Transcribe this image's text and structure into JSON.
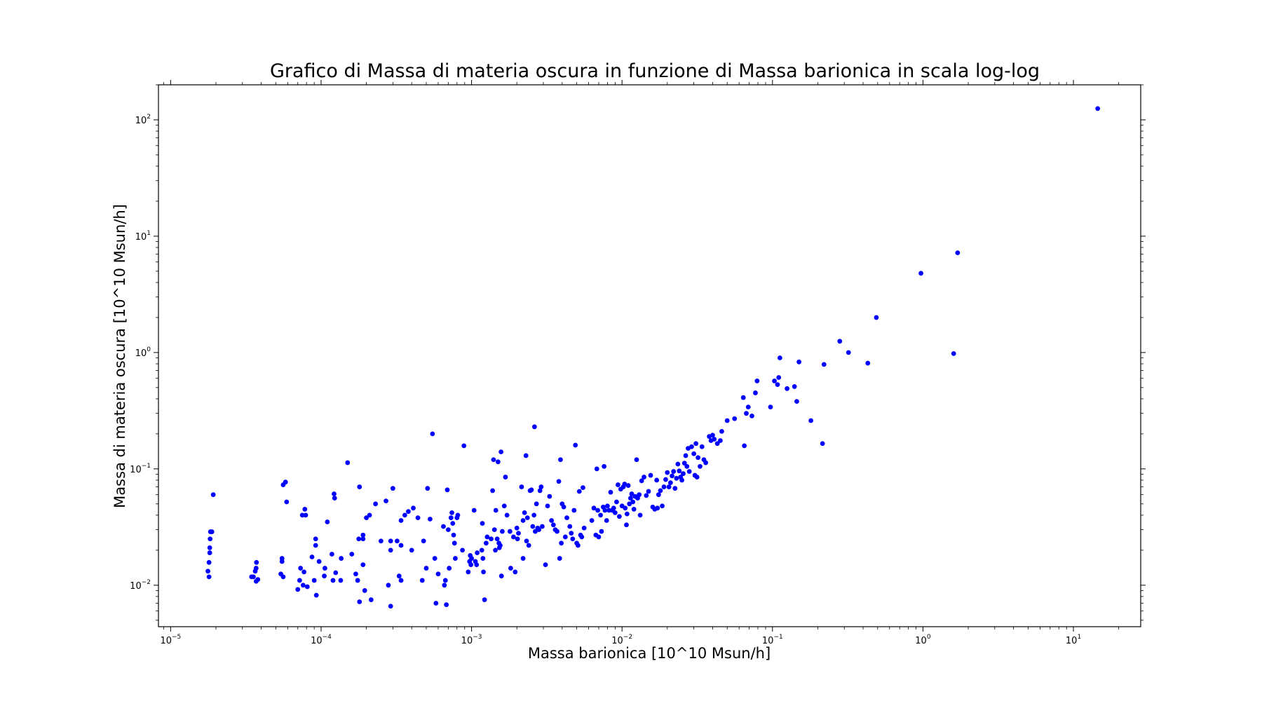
{
  "chart_data": {
    "type": "scatter",
    "title": "Grafico di Massa di materia oscura in funzione di Massa barionica in scala log-log",
    "xlabel": "Massa barionica [10^10 Msun/h]",
    "ylabel": "Massa di materia oscura [10^10 Msun/h]",
    "xscale": "log",
    "yscale": "log",
    "xlim": [
      8.3e-06,
      28
    ],
    "ylim": [
      0.0044,
      200
    ],
    "grid": false,
    "marker_color": "#0000ff",
    "x_ticks": [
      {
        "value": 1e-05,
        "base": "10",
        "exp": "−5"
      },
      {
        "value": 0.0001,
        "base": "10",
        "exp": "−4"
      },
      {
        "value": 0.001,
        "base": "10",
        "exp": "−3"
      },
      {
        "value": 0.01,
        "base": "10",
        "exp": "−2"
      },
      {
        "value": 0.1,
        "base": "10",
        "exp": "−1"
      },
      {
        "value": 1,
        "base": "10",
        "exp": "0"
      },
      {
        "value": 10,
        "base": "10",
        "exp": "1"
      }
    ],
    "y_ticks": [
      {
        "value": 0.01,
        "base": "10",
        "exp": "−2"
      },
      {
        "value": 0.1,
        "base": "10",
        "exp": "−1"
      },
      {
        "value": 1,
        "base": "10",
        "exp": "0"
      },
      {
        "value": 10,
        "base": "10",
        "exp": "1"
      },
      {
        "value": 100,
        "base": "10",
        "exp": "2"
      }
    ],
    "points": [
      [
        1.77e-05,
        0.0132
      ],
      [
        1.8e-05,
        0.0118
      ],
      [
        1.8e-05,
        0.0157
      ],
      [
        1.82e-05,
        0.019
      ],
      [
        1.82e-05,
        0.021
      ],
      [
        1.83e-05,
        0.025
      ],
      [
        1.84e-05,
        0.0288
      ],
      [
        1.88e-05,
        0.0288
      ],
      [
        1.92e-05,
        0.06
      ],
      [
        3.45e-05,
        0.0118
      ],
      [
        3.55e-05,
        0.0118
      ],
      [
        3.65e-05,
        0.0132
      ],
      [
        3.7e-05,
        0.014
      ],
      [
        3.72e-05,
        0.0157
      ],
      [
        3.7e-05,
        0.0108
      ],
      [
        3.8e-05,
        0.0112
      ],
      [
        5.4e-05,
        0.0125
      ],
      [
        5.5e-05,
        0.016
      ],
      [
        5.5e-05,
        0.017
      ],
      [
        5.6e-05,
        0.0118
      ],
      [
        5.6e-05,
        0.073
      ],
      [
        5.8e-05,
        0.077
      ],
      [
        5.9e-05,
        0.052
      ],
      [
        7e-05,
        0.0092
      ],
      [
        7.2e-05,
        0.011
      ],
      [
        7.3e-05,
        0.014
      ],
      [
        7.5e-05,
        0.04
      ],
      [
        7.6e-05,
        0.01
      ],
      [
        7.7e-05,
        0.013
      ],
      [
        7.8e-05,
        0.045
      ],
      [
        7.9e-05,
        0.04
      ],
      [
        8.1e-05,
        0.0097
      ],
      [
        8.7e-05,
        0.0175
      ],
      [
        9e-05,
        0.011
      ],
      [
        9.2e-05,
        0.025
      ],
      [
        9.2e-05,
        0.022
      ],
      [
        9.3e-05,
        0.0082
      ],
      [
        9.7e-05,
        0.016
      ],
      [
        0.000105,
        0.012
      ],
      [
        0.000106,
        0.014
      ],
      [
        0.00011,
        0.035
      ],
      [
        0.000118,
        0.0185
      ],
      [
        0.00012,
        0.011
      ],
      [
        0.000122,
        0.061
      ],
      [
        0.000123,
        0.056
      ],
      [
        0.000125,
        0.0128
      ],
      [
        0.000135,
        0.011
      ],
      [
        0.000136,
        0.017
      ],
      [
        0.00015,
        0.113
      ],
      [
        0.00016,
        0.0185
      ],
      [
        0.00017,
        0.0125
      ],
      [
        0.000175,
        0.011
      ],
      [
        0.000178,
        0.025
      ],
      [
        0.00018,
        0.07
      ],
      [
        0.00018,
        0.0072
      ],
      [
        0.00019,
        0.015
      ],
      [
        0.00019,
        0.027
      ],
      [
        0.00019,
        0.025
      ],
      [
        0.000195,
        0.009
      ],
      [
        0.0002,
        0.038
      ],
      [
        0.00021,
        0.04
      ],
      [
        0.000215,
        0.0075
      ],
      [
        0.00023,
        0.05
      ],
      [
        0.00025,
        0.024
      ],
      [
        0.00027,
        0.053
      ],
      [
        0.00028,
        0.01
      ],
      [
        0.00029,
        0.024
      ],
      [
        0.00029,
        0.02
      ],
      [
        0.00029,
        0.0066
      ],
      [
        0.0003,
        0.068
      ],
      [
        0.00032,
        0.024
      ],
      [
        0.00033,
        0.012
      ],
      [
        0.00034,
        0.036
      ],
      [
        0.00034,
        0.022
      ],
      [
        0.00034,
        0.011
      ],
      [
        0.00036,
        0.04
      ],
      [
        0.00038,
        0.043
      ],
      [
        0.0004,
        0.02
      ],
      [
        0.00041,
        0.046
      ],
      [
        0.00044,
        0.038
      ],
      [
        0.00047,
        0.011
      ],
      [
        0.00048,
        0.024
      ],
      [
        0.0005,
        0.014
      ],
      [
        0.00051,
        0.068
      ],
      [
        0.00053,
        0.037
      ],
      [
        0.00055,
        0.2
      ],
      [
        0.00057,
        0.017
      ],
      [
        0.00058,
        0.007
      ],
      [
        0.0006,
        0.0125
      ],
      [
        0.00065,
        0.032
      ],
      [
        0.00066,
        0.01
      ],
      [
        0.00067,
        0.011
      ],
      [
        0.00068,
        0.0068
      ],
      [
        0.00069,
        0.066
      ],
      [
        0.0007,
        0.03
      ],
      [
        0.00071,
        0.014
      ],
      [
        0.00073,
        0.038
      ],
      [
        0.00074,
        0.042
      ],
      [
        0.00075,
        0.034
      ],
      [
        0.00076,
        0.027
      ],
      [
        0.00077,
        0.023
      ],
      [
        0.00078,
        0.017
      ],
      [
        0.0008,
        0.038
      ],
      [
        0.00081,
        0.04
      ],
      [
        0.00087,
        0.02
      ],
      [
        0.00089,
        0.158
      ],
      [
        0.00095,
        0.013
      ],
      [
        0.00097,
        0.016
      ],
      [
        0.00098,
        0.018
      ],
      [
        0.00099,
        0.015
      ],
      [
        0.001,
        0.017
      ],
      [
        0.00104,
        0.044
      ],
      [
        0.00106,
        0.016
      ],
      [
        0.00108,
        0.015
      ],
      [
        0.00109,
        0.019
      ],
      [
        0.00117,
        0.02
      ],
      [
        0.00118,
        0.034
      ],
      [
        0.00119,
        0.017
      ],
      [
        0.0012,
        0.013
      ],
      [
        0.00122,
        0.0075
      ],
      [
        0.00125,
        0.023
      ],
      [
        0.00127,
        0.026
      ],
      [
        0.00135,
        0.025
      ],
      [
        0.00138,
        0.065
      ],
      [
        0.0014,
        0.12
      ],
      [
        0.00142,
        0.03
      ],
      [
        0.00144,
        0.02
      ],
      [
        0.00145,
        0.044
      ],
      [
        0.00148,
        0.025
      ],
      [
        0.0015,
        0.115
      ],
      [
        0.00152,
        0.023
      ],
      [
        0.00153,
        0.021
      ],
      [
        0.00155,
        0.022
      ],
      [
        0.00157,
        0.14
      ],
      [
        0.00158,
        0.012
      ],
      [
        0.0016,
        0.029
      ],
      [
        0.00165,
        0.048
      ],
      [
        0.00168,
        0.085
      ],
      [
        0.00172,
        0.04
      ],
      [
        0.0018,
        0.029
      ],
      [
        0.00182,
        0.014
      ],
      [
        0.0019,
        0.026
      ],
      [
        0.00195,
        0.013
      ],
      [
        0.002,
        0.031
      ],
      [
        0.00202,
        0.025
      ],
      [
        0.00205,
        0.028
      ],
      [
        0.00215,
        0.07
      ],
      [
        0.0022,
        0.017
      ],
      [
        0.0022,
        0.036
      ],
      [
        0.00225,
        0.042
      ],
      [
        0.0023,
        0.13
      ],
      [
        0.00232,
        0.024
      ],
      [
        0.00235,
        0.038
      ],
      [
        0.0024,
        0.022
      ],
      [
        0.00245,
        0.065
      ],
      [
        0.0025,
        0.066
      ],
      [
        0.00255,
        0.032
      ],
      [
        0.0026,
        0.04
      ],
      [
        0.00262,
        0.23
      ],
      [
        0.00265,
        0.029
      ],
      [
        0.0027,
        0.05
      ],
      [
        0.00275,
        0.031
      ],
      [
        0.0028,
        0.03
      ],
      [
        0.00285,
        0.065
      ],
      [
        0.0029,
        0.07
      ],
      [
        0.00295,
        0.032
      ],
      [
        0.0031,
        0.015
      ],
      [
        0.0032,
        0.048
      ],
      [
        0.0033,
        0.058
      ],
      [
        0.0034,
        0.036
      ],
      [
        0.0035,
        0.033
      ],
      [
        0.0036,
        0.03
      ],
      [
        0.0037,
        0.029
      ],
      [
        0.0038,
        0.078
      ],
      [
        0.00385,
        0.017
      ],
      [
        0.0039,
        0.12
      ],
      [
        0.00395,
        0.023
      ],
      [
        0.004,
        0.05
      ],
      [
        0.0041,
        0.047
      ],
      [
        0.0042,
        0.026
      ],
      [
        0.0043,
        0.038
      ],
      [
        0.0045,
        0.032
      ],
      [
        0.0046,
        0.028
      ],
      [
        0.0047,
        0.025
      ],
      [
        0.0048,
        0.044
      ],
      [
        0.0049,
        0.16
      ],
      [
        0.005,
        0.023
      ],
      [
        0.0051,
        0.022
      ],
      [
        0.0052,
        0.064
      ],
      [
        0.0053,
        0.027
      ],
      [
        0.0054,
        0.026
      ],
      [
        0.0055,
        0.069
      ],
      [
        0.0056,
        0.031
      ],
      [
        0.0063,
        0.036
      ],
      [
        0.0065,
        0.046
      ],
      [
        0.0067,
        0.027
      ],
      [
        0.0068,
        0.1
      ],
      [
        0.0069,
        0.044
      ],
      [
        0.007,
        0.026
      ],
      [
        0.0072,
        0.04
      ],
      [
        0.0073,
        0.029
      ],
      [
        0.0075,
        0.047
      ],
      [
        0.0076,
        0.105
      ],
      [
        0.0077,
        0.044
      ],
      [
        0.0079,
        0.036
      ],
      [
        0.008,
        0.048
      ],
      [
        0.0082,
        0.044
      ],
      [
        0.0084,
        0.063
      ],
      [
        0.0086,
        0.044
      ],
      [
        0.0088,
        0.046
      ],
      [
        0.009,
        0.042
      ],
      [
        0.0092,
        0.052
      ],
      [
        0.0094,
        0.073
      ],
      [
        0.0096,
        0.039
      ],
      [
        0.0098,
        0.067
      ],
      [
        0.01,
        0.048
      ],
      [
        0.0102,
        0.07
      ],
      [
        0.0104,
        0.074
      ],
      [
        0.0105,
        0.046
      ],
      [
        0.0107,
        0.033
      ],
      [
        0.0108,
        0.041
      ],
      [
        0.011,
        0.072
      ],
      [
        0.0112,
        0.05
      ],
      [
        0.0114,
        0.056
      ],
      [
        0.0116,
        0.061
      ],
      [
        0.0118,
        0.052
      ],
      [
        0.012,
        0.045
      ],
      [
        0.0122,
        0.058
      ],
      [
        0.0125,
        0.12
      ],
      [
        0.0127,
        0.056
      ],
      [
        0.013,
        0.06
      ],
      [
        0.0132,
        0.04
      ],
      [
        0.0135,
        0.079
      ],
      [
        0.014,
        0.085
      ],
      [
        0.0145,
        0.059
      ],
      [
        0.015,
        0.064
      ],
      [
        0.0155,
        0.088
      ],
      [
        0.016,
        0.047
      ],
      [
        0.0165,
        0.045
      ],
      [
        0.017,
        0.08
      ],
      [
        0.0172,
        0.046
      ],
      [
        0.0175,
        0.06
      ],
      [
        0.018,
        0.065
      ],
      [
        0.0185,
        0.048
      ],
      [
        0.019,
        0.07
      ],
      [
        0.0195,
        0.081
      ],
      [
        0.02,
        0.093
      ],
      [
        0.0205,
        0.07
      ],
      [
        0.021,
        0.076
      ],
      [
        0.0215,
        0.087
      ],
      [
        0.022,
        0.095
      ],
      [
        0.0225,
        0.068
      ],
      [
        0.023,
        0.083
      ],
      [
        0.0235,
        0.11
      ],
      [
        0.024,
        0.096
      ],
      [
        0.0245,
        0.085
      ],
      [
        0.025,
        0.08
      ],
      [
        0.0255,
        0.091
      ],
      [
        0.026,
        0.112
      ],
      [
        0.0265,
        0.13
      ],
      [
        0.027,
        0.105
      ],
      [
        0.0275,
        0.15
      ],
      [
        0.028,
        0.095
      ],
      [
        0.029,
        0.155
      ],
      [
        0.03,
        0.135
      ],
      [
        0.0305,
        0.088
      ],
      [
        0.031,
        0.165
      ],
      [
        0.0315,
        0.085
      ],
      [
        0.032,
        0.125
      ],
      [
        0.033,
        0.105
      ],
      [
        0.034,
        0.155
      ],
      [
        0.035,
        0.12
      ],
      [
        0.036,
        0.113
      ],
      [
        0.038,
        0.19
      ],
      [
        0.039,
        0.175
      ],
      [
        0.04,
        0.195
      ],
      [
        0.041,
        0.18
      ],
      [
        0.043,
        0.165
      ],
      [
        0.045,
        0.175
      ],
      [
        0.046,
        0.21
      ],
      [
        0.05,
        0.26
      ],
      [
        0.056,
        0.27
      ],
      [
        0.064,
        0.41
      ],
      [
        0.065,
        0.158
      ],
      [
        0.067,
        0.3
      ],
      [
        0.069,
        0.34
      ],
      [
        0.073,
        0.285
      ],
      [
        0.077,
        0.45
      ],
      [
        0.079,
        0.57
      ],
      [
        0.097,
        0.34
      ],
      [
        0.103,
        0.57
      ],
      [
        0.108,
        0.53
      ],
      [
        0.11,
        0.61
      ],
      [
        0.112,
        0.9
      ],
      [
        0.125,
        0.49
      ],
      [
        0.14,
        0.51
      ],
      [
        0.145,
        0.38
      ],
      [
        0.15,
        0.83
      ],
      [
        0.18,
        0.26
      ],
      [
        0.215,
        0.165
      ],
      [
        0.22,
        0.79
      ],
      [
        0.28,
        1.25
      ],
      [
        0.32,
        1.0
      ],
      [
        0.43,
        0.81
      ],
      [
        0.49,
        2.0
      ],
      [
        0.97,
        4.8
      ],
      [
        1.6,
        0.98
      ],
      [
        1.7,
        7.2
      ],
      [
        14.5,
        125.0
      ]
    ]
  }
}
